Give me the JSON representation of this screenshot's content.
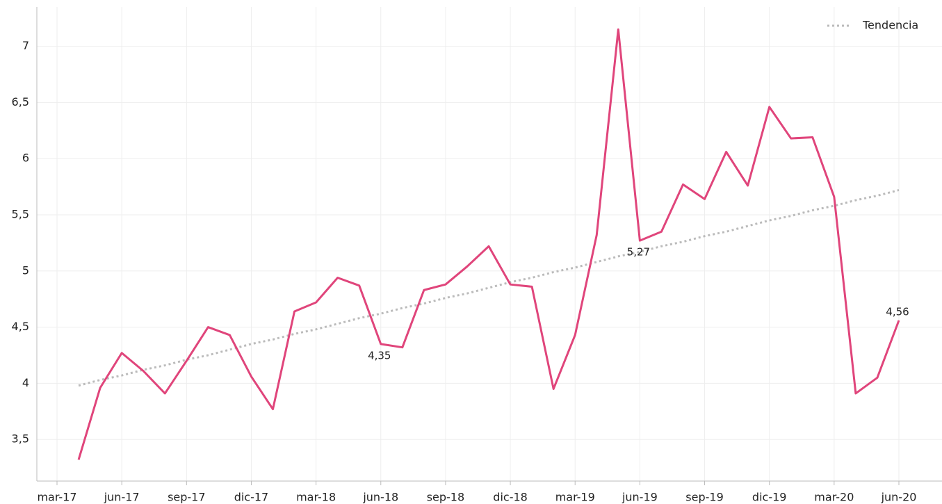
{
  "chart_data": {
    "type": "line",
    "categories": [
      "mar-17",
      null,
      null,
      "jun-17",
      null,
      null,
      "sep-17",
      null,
      null,
      "dic-17",
      null,
      null,
      "mar-18",
      null,
      null,
      "jun-18",
      null,
      null,
      "sep-18",
      null,
      null,
      "dic-18",
      null,
      null,
      "mar-19",
      null,
      null,
      "jun-19",
      null,
      null,
      "sep-19",
      null,
      null,
      "dic-19",
      null,
      null,
      "mar-20",
      null,
      null,
      "jun-20"
    ],
    "series": [
      {
        "color": "#e0457b",
        "style": "solid",
        "values": [
          null,
          3.32,
          3.96,
          4.27,
          4.11,
          3.91,
          4.2,
          4.5,
          4.43,
          4.06,
          3.77,
          4.64,
          4.72,
          4.94,
          4.87,
          4.35,
          4.32,
          4.83,
          4.88,
          5.04,
          5.22,
          4.88,
          4.86,
          3.95,
          4.43,
          5.32,
          7.15,
          5.27,
          5.35,
          5.77,
          5.64,
          6.06,
          5.76,
          6.46,
          6.18,
          6.19,
          5.66,
          3.91,
          4.05,
          4.56
        ],
        "value_labels": [
          null,
          null,
          null,
          null,
          null,
          null,
          null,
          null,
          null,
          null,
          null,
          null,
          null,
          null,
          null,
          "4,35",
          null,
          null,
          null,
          null,
          null,
          null,
          null,
          null,
          null,
          null,
          null,
          "5,27",
          null,
          null,
          null,
          null,
          null,
          null,
          null,
          null,
          null,
          null,
          null,
          "4,56"
        ]
      },
      {
        "name": "Tendencia",
        "color": "#bbbbbb",
        "style": "dotted",
        "values": [
          null,
          3.98,
          4.03,
          4.07,
          4.12,
          4.16,
          4.21,
          4.25,
          4.3,
          4.35,
          4.39,
          4.44,
          4.48,
          4.53,
          4.58,
          4.62,
          4.67,
          4.71,
          4.76,
          4.8,
          4.85,
          4.9,
          4.94,
          4.99,
          5.03,
          5.08,
          5.13,
          5.17,
          5.22,
          5.26,
          5.31,
          5.35,
          5.4,
          5.45,
          5.49,
          5.54,
          5.58,
          5.63,
          5.67,
          5.72
        ]
      }
    ],
    "ylim": [
      3.13,
      7.35
    ],
    "yticks": [
      {
        "value": 3.5,
        "label": "3,5"
      },
      4,
      {
        "value": 4.5,
        "label": "4,5"
      },
      5,
      {
        "value": 5.5,
        "label": "5,5"
      },
      6,
      {
        "value": 6.5,
        "label": "6,5"
      },
      7
    ],
    "grid": true,
    "legend": "upper right"
  }
}
